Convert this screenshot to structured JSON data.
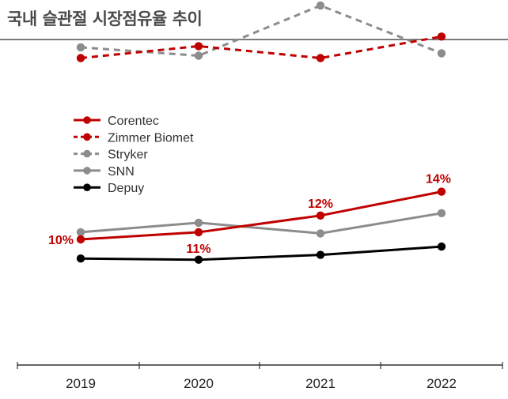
{
  "page": {
    "title": "국내 슬관절 시장점유율 추이"
  },
  "chart_data": {
    "type": "line",
    "x": [
      "2019",
      "2020",
      "2021",
      "2022"
    ],
    "series": [
      {
        "name": "Corentec",
        "values": [
          10,
          10.6,
          12,
          14
        ],
        "color": "#c00000",
        "style": "solid",
        "labels": [
          "10%",
          "11%",
          "12%",
          "14%"
        ]
      },
      {
        "name": "Zimmer Biomet",
        "values": [
          25.2,
          26.2,
          25.2,
          27.0
        ],
        "color": "#c00000",
        "style": "dashed"
      },
      {
        "name": "Stryker",
        "values": [
          26.1,
          25.4,
          29.6,
          25.6
        ],
        "color": "#8c8c8c",
        "style": "dashed"
      },
      {
        "name": "SNN",
        "values": [
          10.6,
          11.4,
          10.5,
          12.2
        ],
        "color": "#8c8c8c",
        "style": "solid"
      },
      {
        "name": "Depuy",
        "values": [
          8.4,
          8.3,
          8.7,
          9.4
        ],
        "color": "#000000",
        "style": "solid"
      }
    ],
    "legend_position": "upper-left",
    "grid": false
  }
}
